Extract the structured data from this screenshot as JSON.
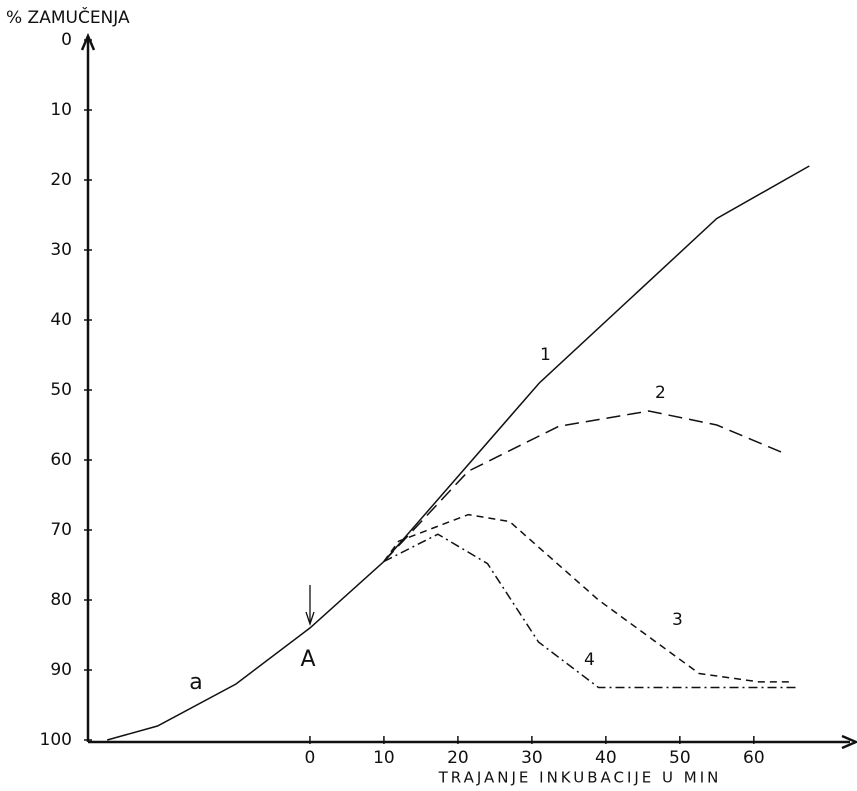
{
  "chart_data": {
    "type": "line",
    "y_label": "% ZAMUČENJA",
    "x_label": "TRAJANJE INKUBACIJE U MIN",
    "xlim": [
      -30,
      73
    ],
    "ylim": [
      0,
      100
    ],
    "y_inverted": true,
    "xticks": [
      0,
      10,
      20,
      30,
      40,
      50,
      60
    ],
    "yticks": [
      0,
      10,
      20,
      30,
      40,
      50,
      60,
      70,
      80,
      90,
      100
    ],
    "series": [
      {
        "name": "1",
        "color": "#111111",
        "dash": "solid",
        "x": [
          -27.4,
          -20.6,
          -10,
          0,
          10,
          31,
          55,
          67.5
        ],
        "values": [
          100,
          98,
          92,
          84,
          74.5,
          49,
          25.5,
          18
        ]
      },
      {
        "name": "2",
        "color": "#111111",
        "dash": "long",
        "x": [
          10,
          21.4,
          33.6,
          45.8,
          55,
          64
        ],
        "values": [
          74.5,
          61.6,
          55.2,
          53,
          55,
          59
        ]
      },
      {
        "name": "3",
        "color": "#111111",
        "dash": "short",
        "x": [
          10,
          12,
          21.4,
          27,
          39,
          52.6,
          60.7,
          64.8
        ],
        "values": [
          74.5,
          71.6,
          67.8,
          68.8,
          80,
          90.5,
          91.7,
          91.7
        ]
      },
      {
        "name": "4",
        "color": "#111111",
        "dash": "dashdot",
        "x": [
          10,
          17.3,
          24,
          30.9,
          39,
          66
        ],
        "values": [
          74.5,
          70.6,
          74.8,
          86,
          92.5,
          92.5
        ]
      }
    ],
    "annotations": [
      "a",
      "A"
    ]
  }
}
